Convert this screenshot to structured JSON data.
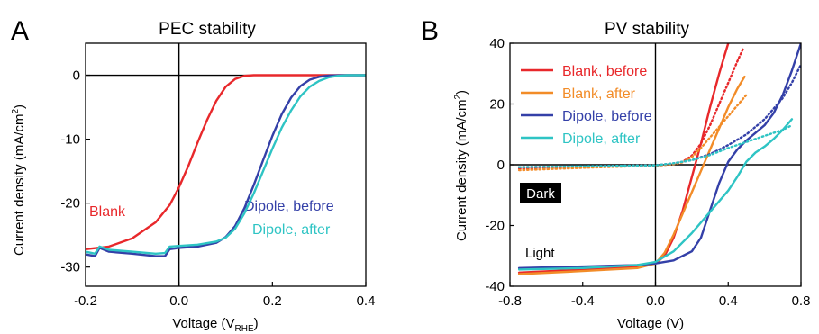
{
  "panels": {
    "a": {
      "letter": "A"
    },
    "b": {
      "letter": "B"
    }
  },
  "chart_data": [
    {
      "type": "line",
      "title": "PEC stability",
      "xlabel": "Voltage (V",
      "xlabel_sub": "RHE",
      "xlabel_end": ")",
      "ylabel": "Current density (mA/cm",
      "ylabel_sup": "2",
      "ylabel_end": ")",
      "xlim": [
        -0.2,
        0.4
      ],
      "ylim": [
        -33,
        5
      ],
      "xticks": [
        -0.2,
        0.0,
        0.2,
        0.4
      ],
      "xtick_labels": [
        "-0.2",
        "0.0",
        "0.2",
        "0.4"
      ],
      "yticks": [
        0,
        -10,
        -20,
        -30
      ],
      "ytick_labels": [
        "0",
        "-10",
        "-20",
        "-30"
      ],
      "zero_lines": true,
      "grid": false,
      "annotations": [
        {
          "text": "Blank",
          "color": "#e8282b"
        },
        {
          "text": "Dipole, before",
          "color": "#3440a8"
        },
        {
          "text": "Dipole, after",
          "color": "#2ec4c4"
        }
      ],
      "series": [
        {
          "name": "Blank",
          "color": "#e8282b",
          "x": [
            -0.2,
            -0.15,
            -0.1,
            -0.05,
            -0.02,
            0.0,
            0.02,
            0.04,
            0.06,
            0.08,
            0.1,
            0.12,
            0.14,
            0.16,
            0.2,
            0.3,
            0.4
          ],
          "y": [
            -27.2,
            -26.8,
            -25.5,
            -23.0,
            -20.3,
            -17.5,
            -14.2,
            -10.5,
            -7.0,
            -4.0,
            -1.8,
            -0.6,
            -0.1,
            0.0,
            0.0,
            0.0,
            0.0
          ]
        },
        {
          "name": "Dipole, before",
          "color": "#3440a8",
          "x": [
            -0.2,
            -0.18,
            -0.17,
            -0.15,
            -0.1,
            -0.05,
            -0.03,
            -0.02,
            0.0,
            0.04,
            0.08,
            0.1,
            0.12,
            0.14,
            0.16,
            0.18,
            0.2,
            0.22,
            0.24,
            0.26,
            0.28,
            0.3,
            0.32,
            0.35,
            0.4
          ],
          "y": [
            -28.0,
            -28.3,
            -27.0,
            -27.6,
            -27.9,
            -28.3,
            -28.3,
            -27.2,
            -27.0,
            -26.8,
            -26.2,
            -25.3,
            -23.6,
            -20.8,
            -17.2,
            -13.3,
            -9.5,
            -6.1,
            -3.5,
            -1.7,
            -0.7,
            -0.25,
            -0.05,
            0.0,
            0.0
          ]
        },
        {
          "name": "Dipole, after",
          "color": "#2ec4c4",
          "x": [
            -0.2,
            -0.18,
            -0.17,
            -0.15,
            -0.1,
            -0.05,
            -0.03,
            -0.02,
            0.0,
            0.04,
            0.08,
            0.1,
            0.12,
            0.14,
            0.16,
            0.18,
            0.2,
            0.22,
            0.24,
            0.26,
            0.28,
            0.3,
            0.32,
            0.34,
            0.36,
            0.4
          ],
          "y": [
            -27.6,
            -27.9,
            -26.8,
            -27.3,
            -27.6,
            -27.9,
            -27.8,
            -26.8,
            -26.7,
            -26.5,
            -26.0,
            -25.4,
            -24.0,
            -21.6,
            -18.5,
            -15.0,
            -11.5,
            -8.2,
            -5.5,
            -3.3,
            -1.8,
            -0.9,
            -0.35,
            -0.1,
            0.0,
            0.0
          ]
        }
      ]
    },
    {
      "type": "line",
      "title": "PV stability",
      "xlabel": "Voltage (V)",
      "ylabel": "Current density (mA/cm",
      "ylabel_sup": "2",
      "ylabel_end": ")",
      "xlim": [
        -0.8,
        0.8
      ],
      "ylim": [
        -40,
        40
      ],
      "xticks": [
        -0.8,
        -0.4,
        0.0,
        0.4,
        0.8
      ],
      "xtick_labels": [
        "-0.8",
        "-0.4",
        "0.0",
        "0.4",
        "0.8"
      ],
      "yticks": [
        40,
        20,
        0,
        -20,
        -40
      ],
      "ytick_labels": [
        "40",
        "20",
        "0",
        "-20",
        "-40"
      ],
      "zero_lines": true,
      "grid": false,
      "legend_position": "top-left",
      "labels": [
        {
          "text": "Dark",
          "style": "boxed"
        },
        {
          "text": "Light"
        }
      ],
      "series": [
        {
          "name": "Blank,   before",
          "color": "#e8282b",
          "style": "solid",
          "x": [
            -0.75,
            -0.4,
            -0.1,
            0.0,
            0.05,
            0.1,
            0.15,
            0.2,
            0.25,
            0.3,
            0.35,
            0.38,
            0.4
          ],
          "y": [
            -35.5,
            -34.5,
            -33.5,
            -32.5,
            -30.0,
            -24.0,
            -15.0,
            -4.0,
            7.0,
            19.0,
            30.0,
            36.0,
            40.0
          ]
        },
        {
          "name": "Blank,   after",
          "color": "#f28c28",
          "style": "solid",
          "x": [
            -0.75,
            -0.4,
            -0.1,
            0.0,
            0.05,
            0.1,
            0.15,
            0.2,
            0.25,
            0.3,
            0.35,
            0.4,
            0.45,
            0.49
          ],
          "y": [
            -36.0,
            -35.0,
            -34.0,
            -32.5,
            -29.0,
            -23.0,
            -16.0,
            -9.0,
            -2.0,
            5.0,
            12.0,
            19.0,
            25.0,
            29.0
          ]
        },
        {
          "name": "Dipole,  before",
          "color": "#3440a8",
          "style": "solid",
          "x": [
            -0.75,
            -0.4,
            -0.1,
            0.0,
            0.1,
            0.2,
            0.25,
            0.3,
            0.35,
            0.4,
            0.45,
            0.5,
            0.55,
            0.6,
            0.65,
            0.7,
            0.75,
            0.8
          ],
          "y": [
            -34.0,
            -33.5,
            -33.0,
            -32.5,
            -31.5,
            -28.5,
            -24.0,
            -15.0,
            -6.0,
            1.0,
            5.0,
            8.0,
            10.5,
            13.0,
            17.0,
            23.0,
            31.0,
            40.0
          ]
        },
        {
          "name": "Dipole,  after",
          "color": "#2ec4c4",
          "style": "solid",
          "x": [
            -0.75,
            -0.4,
            -0.1,
            0.0,
            0.1,
            0.2,
            0.3,
            0.4,
            0.45,
            0.5,
            0.55,
            0.6,
            0.65,
            0.7,
            0.75
          ],
          "y": [
            -34.5,
            -34.0,
            -33.0,
            -32.0,
            -28.5,
            -22.5,
            -15.5,
            -8.5,
            -4.0,
            1.0,
            4.0,
            6.0,
            8.5,
            11.5,
            15.0
          ]
        },
        {
          "name": "",
          "color": "#e8282b",
          "style": "dotted",
          "x": [
            -0.75,
            -0.4,
            0.0,
            0.1,
            0.15,
            0.2,
            0.25,
            0.3,
            0.35,
            0.4,
            0.45,
            0.48
          ],
          "y": [
            -1.2,
            -0.8,
            -0.3,
            0.3,
            1.0,
            3.0,
            7.0,
            13.0,
            20.0,
            27.0,
            34.0,
            38.0
          ]
        },
        {
          "name": "",
          "color": "#f28c28",
          "style": "dotted",
          "x": [
            -0.75,
            -0.4,
            0.0,
            0.1,
            0.15,
            0.2,
            0.25,
            0.3,
            0.35,
            0.4,
            0.45,
            0.5
          ],
          "y": [
            -1.8,
            -1.0,
            -0.3,
            0.2,
            0.8,
            2.5,
            5.5,
            9.0,
            12.5,
            16.0,
            19.5,
            23.0
          ]
        },
        {
          "name": "",
          "color": "#3440a8",
          "style": "dotted",
          "x": [
            -0.75,
            -0.4,
            0.0,
            0.1,
            0.2,
            0.3,
            0.4,
            0.5,
            0.6,
            0.7,
            0.75,
            0.8
          ],
          "y": [
            -0.8,
            -0.5,
            -0.2,
            0.5,
            1.5,
            3.5,
            6.5,
            10.0,
            15.0,
            22.0,
            27.0,
            33.0
          ]
        },
        {
          "name": "",
          "color": "#2ec4c4",
          "style": "dotted",
          "x": [
            -0.75,
            -0.4,
            0.0,
            0.1,
            0.2,
            0.3,
            0.4,
            0.5,
            0.6,
            0.7,
            0.75
          ],
          "y": [
            -0.8,
            -0.5,
            -0.2,
            0.5,
            1.5,
            3.2,
            5.5,
            7.5,
            9.5,
            11.5,
            13.0
          ]
        }
      ]
    }
  ]
}
